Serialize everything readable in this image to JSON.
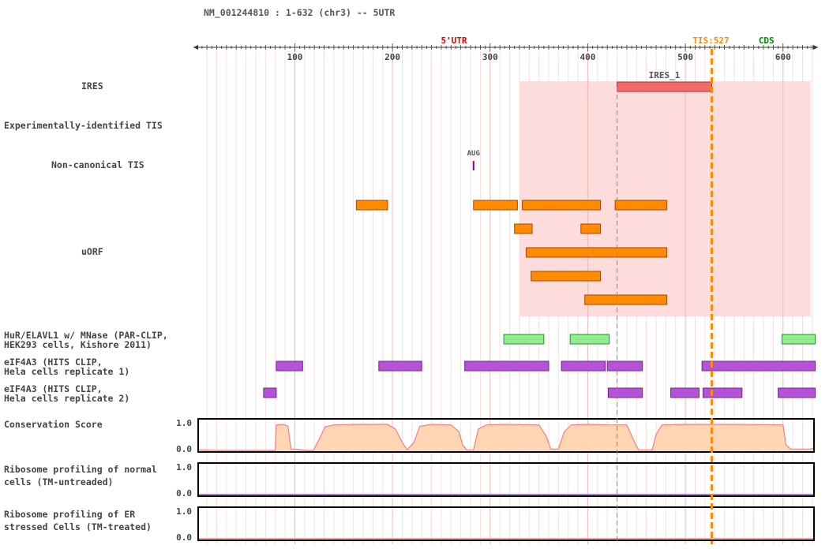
{
  "header": {
    "title": "NM_001244810 : 1-632 (chr3) -- 5UTR"
  },
  "ruler": {
    "ticks": [
      "100",
      "200",
      "300",
      "400",
      "500",
      "600"
    ],
    "utr_label": "5'UTR",
    "tis_label": "TIS:527",
    "cds_label": "CDS"
  },
  "tracks": {
    "ires": {
      "label": "IRES",
      "feature_label": "IRES_1"
    },
    "exp_tis": {
      "label": "Experimentally-identified TIS"
    },
    "noncanonical_tis": {
      "label": "Non-canonical TIS",
      "marker_label": "AUG"
    },
    "uorf": {
      "label": "uORF"
    },
    "hur": {
      "label_line1": "HuR/ELAVL1 w/ MNase (PAR-CLIP,",
      "label_line2": "HEK293 cells, Kishore 2011)"
    },
    "eif4a3_1": {
      "label_line1": "eIF4A3 (HITS CLIP,",
      "label_line2": "Hela cells replicate 1)"
    },
    "eif4a3_2": {
      "label_line1": "eIF4A3 (HITS CLIP,",
      "label_line2": "Hela cells replicate 2)"
    },
    "conservation": {
      "label": "Conservation Score",
      "ymax": "1.0",
      "ymin": "0.0"
    },
    "ribo_normal": {
      "label_line1": "Ribosome profiling of normal",
      "label_line2": "cells (TM-untreaded)",
      "ymax": "1.0",
      "ymin": "0.0"
    },
    "ribo_er": {
      "label_line1": "Ribosome profiling of ER",
      "label_line2": "stressed Cells (TM-treated)",
      "ymax": "1.0",
      "ymin": "0.0"
    }
  },
  "colors": {
    "utr": "#dd0000",
    "tis": "#ff8c00",
    "cds": "#008800",
    "ires": "#f26b6b",
    "ires_shade": "#ffd6d6",
    "uorf": "#ff8c00",
    "hur": "#90ee90",
    "eif4a3": "#b552d8",
    "conservation_fill": "#ffd6b3",
    "conservation_line": "#f08080",
    "ribo_normal": "#8e55c8",
    "ribo_er": "#ff7f7f"
  },
  "diagram_data": {
    "sequence_length": 632,
    "tis_position": 527,
    "ires_region": {
      "start": 330,
      "end": 628
    },
    "ires_features": [
      {
        "start": 430,
        "end": 527
      }
    ],
    "noncanonical_tis": [
      283
    ],
    "uorfs": [
      {
        "start": 163,
        "end": 195,
        "row": 0
      },
      {
        "start": 283,
        "end": 328,
        "row": 0
      },
      {
        "start": 333,
        "end": 413,
        "row": 0
      },
      {
        "start": 428,
        "end": 481,
        "row": 0
      },
      {
        "start": 325,
        "end": 343,
        "row": 1
      },
      {
        "start": 393,
        "end": 413,
        "row": 1
      },
      {
        "start": 337,
        "end": 481,
        "row": 2
      },
      {
        "start": 342,
        "end": 413,
        "row": 3
      },
      {
        "start": 397,
        "end": 481,
        "row": 4
      }
    ],
    "hur_sites": [
      {
        "start": 314,
        "end": 355
      },
      {
        "start": 382,
        "end": 422
      },
      {
        "start": 599,
        "end": 633
      }
    ],
    "eif4a3_rep1": [
      {
        "start": 81,
        "end": 108
      },
      {
        "start": 186,
        "end": 230
      },
      {
        "start": 274,
        "end": 360
      },
      {
        "start": 373,
        "end": 418
      },
      {
        "start": 420,
        "end": 456
      },
      {
        "start": 517,
        "end": 633
      }
    ],
    "eif4a3_rep2": [
      {
        "start": 68,
        "end": 81
      },
      {
        "start": 421,
        "end": 456
      },
      {
        "start": 485,
        "end": 514
      },
      {
        "start": 518,
        "end": 558
      },
      {
        "start": 595,
        "end": 633
      }
    ],
    "conservation": [
      [
        1,
        0.02
      ],
      [
        20,
        0.0
      ],
      [
        40,
        0.0
      ],
      [
        60,
        0.0
      ],
      [
        80,
        0.0
      ],
      [
        81,
        0.95
      ],
      [
        88,
        0.97
      ],
      [
        93,
        0.9
      ],
      [
        96,
        0.05
      ],
      [
        100,
        0.05
      ],
      [
        112,
        0.0
      ],
      [
        119,
        0.0
      ],
      [
        126,
        0.5
      ],
      [
        131,
        0.88
      ],
      [
        140,
        0.95
      ],
      [
        165,
        0.97
      ],
      [
        195,
        0.97
      ],
      [
        203,
        0.8
      ],
      [
        210,
        0.3
      ],
      [
        215,
        0.02
      ],
      [
        222,
        0.3
      ],
      [
        228,
        0.9
      ],
      [
        240,
        0.97
      ],
      [
        260,
        0.95
      ],
      [
        268,
        0.7
      ],
      [
        272,
        0.2
      ],
      [
        276,
        0.02
      ],
      [
        283,
        0.02
      ],
      [
        288,
        0.8
      ],
      [
        296,
        0.95
      ],
      [
        315,
        0.97
      ],
      [
        350,
        0.95
      ],
      [
        358,
        0.5
      ],
      [
        362,
        0.05
      ],
      [
        370,
        0.05
      ],
      [
        376,
        0.7
      ],
      [
        383,
        0.95
      ],
      [
        400,
        0.97
      ],
      [
        420,
        0.95
      ],
      [
        440,
        0.95
      ],
      [
        448,
        0.3
      ],
      [
        452,
        0.02
      ],
      [
        466,
        0.02
      ],
      [
        470,
        0.6
      ],
      [
        476,
        0.95
      ],
      [
        500,
        0.97
      ],
      [
        550,
        0.97
      ],
      [
        600,
        0.95
      ],
      [
        603,
        0.2
      ],
      [
        608,
        0.05
      ],
      [
        628,
        0.05
      ],
      [
        632,
        0.1
      ]
    ],
    "ribo_normal": [],
    "ribo_er": []
  }
}
